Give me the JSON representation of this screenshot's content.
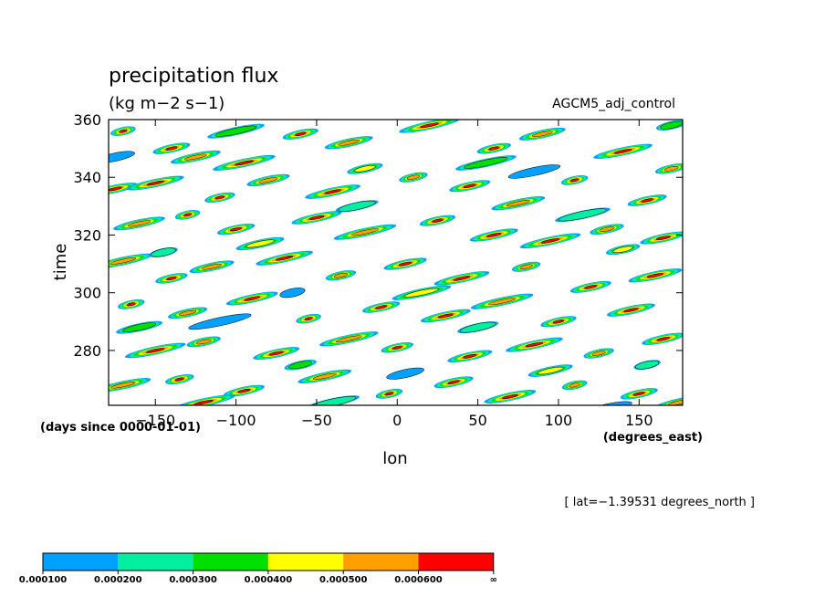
{
  "chart_data": {
    "type": "heatmap",
    "title": "precipitation flux",
    "units": "(kg m−2 s−1)",
    "dataset": "AGCM5_adj_control",
    "xlabel": "lon",
    "ylabel": "time",
    "x_units": "(degrees_east)",
    "y_units": "(days since 0000-01-01)",
    "annotation": "[ lat=−1.39531 degrees_north ]",
    "xlim": [
      -179,
      177
    ],
    "ylim": [
      261,
      360
    ],
    "x_ticks": [
      -150,
      -100,
      -50,
      0,
      50,
      100,
      150
    ],
    "x_tick_labels": [
      "−150",
      "−100",
      "−50",
      "0",
      "50",
      "100",
      "150"
    ],
    "y_ticks": [
      280,
      300,
      320,
      340,
      360
    ],
    "y_tick_labels": [
      "280",
      "300",
      "320",
      "340",
      "360"
    ],
    "grid": false,
    "legend_position": "bottom-left",
    "colorbar": {
      "levels": [
        "0.000100",
        "0.000200",
        "0.000300",
        "0.000400",
        "0.000500",
        "0.000600",
        "∞"
      ],
      "colors": [
        "#00a0ff",
        "#00f0a0",
        "#00e000",
        "#ffff00",
        "#ffa000",
        "#ff0000"
      ]
    },
    "field_description": "Hovmoller (time vs longitude) of precipitation flux; scattered short streaks tilted eastward with time",
    "features": [
      {
        "lon": -170,
        "time": 356,
        "value": 0.00065
      },
      {
        "lon": -140,
        "time": 350,
        "value": 0.00062
      },
      {
        "lon": -125,
        "time": 347,
        "value": 0.00058
      },
      {
        "lon": -95,
        "time": 345,
        "value": 0.00065
      },
      {
        "lon": -60,
        "time": 355,
        "value": 0.00066
      },
      {
        "lon": -30,
        "time": 352,
        "value": 0.00055
      },
      {
        "lon": 20,
        "time": 358,
        "value": 0.00064
      },
      {
        "lon": 60,
        "time": 350,
        "value": 0.00062
      },
      {
        "lon": 90,
        "time": 355,
        "value": 0.00058
      },
      {
        "lon": 140,
        "time": 349,
        "value": 0.00066
      },
      {
        "lon": 170,
        "time": 343,
        "value": 0.00055
      },
      {
        "lon": -175,
        "time": 336,
        "value": 0.00065
      },
      {
        "lon": -150,
        "time": 338,
        "value": 0.00062
      },
      {
        "lon": -110,
        "time": 333,
        "value": 0.00064
      },
      {
        "lon": -80,
        "time": 339,
        "value": 0.00052
      },
      {
        "lon": -40,
        "time": 335,
        "value": 0.00065
      },
      {
        "lon": 10,
        "time": 340,
        "value": 0.00058
      },
      {
        "lon": 45,
        "time": 337,
        "value": 0.00065
      },
      {
        "lon": 75,
        "time": 331,
        "value": 0.00055
      },
      {
        "lon": 110,
        "time": 339,
        "value": 0.00064
      },
      {
        "lon": 155,
        "time": 332,
        "value": 0.00062
      },
      {
        "lon": -160,
        "time": 324,
        "value": 0.00058
      },
      {
        "lon": -130,
        "time": 327,
        "value": 0.00066
      },
      {
        "lon": -100,
        "time": 322,
        "value": 0.00061
      },
      {
        "lon": -50,
        "time": 326,
        "value": 0.00065
      },
      {
        "lon": -20,
        "time": 321,
        "value": 0.00055
      },
      {
        "lon": 25,
        "time": 325,
        "value": 0.00064
      },
      {
        "lon": 60,
        "time": 320,
        "value": 0.00066
      },
      {
        "lon": 95,
        "time": 318,
        "value": 0.00065
      },
      {
        "lon": 130,
        "time": 322,
        "value": 0.00058
      },
      {
        "lon": 165,
        "time": 319,
        "value": 0.00062
      },
      {
        "lon": -170,
        "time": 311,
        "value": 0.00055
      },
      {
        "lon": -140,
        "time": 305,
        "value": 0.00066
      },
      {
        "lon": -115,
        "time": 309,
        "value": 0.00058
      },
      {
        "lon": -70,
        "time": 312,
        "value": 0.00064
      },
      {
        "lon": -35,
        "time": 306,
        "value": 0.00055
      },
      {
        "lon": 5,
        "time": 310,
        "value": 0.00062
      },
      {
        "lon": 40,
        "time": 305,
        "value": 0.00066
      },
      {
        "lon": 80,
        "time": 309,
        "value": 0.00055
      },
      {
        "lon": 120,
        "time": 302,
        "value": 0.00064
      },
      {
        "lon": 160,
        "time": 306,
        "value": 0.00062
      },
      {
        "lon": -165,
        "time": 296,
        "value": 0.00064
      },
      {
        "lon": -130,
        "time": 293,
        "value": 0.00055
      },
      {
        "lon": -90,
        "time": 298,
        "value": 0.00066
      },
      {
        "lon": -55,
        "time": 291,
        "value": 0.00061
      },
      {
        "lon": -10,
        "time": 295,
        "value": 0.00065
      },
      {
        "lon": 30,
        "time": 292,
        "value": 0.00066
      },
      {
        "lon": 65,
        "time": 297,
        "value": 0.00058
      },
      {
        "lon": 100,
        "time": 290,
        "value": 0.00065
      },
      {
        "lon": 145,
        "time": 294,
        "value": 0.00062
      },
      {
        "lon": -150,
        "time": 280,
        "value": 0.00066
      },
      {
        "lon": -120,
        "time": 283,
        "value": 0.00058
      },
      {
        "lon": -75,
        "time": 279,
        "value": 0.00064
      },
      {
        "lon": -30,
        "time": 284,
        "value": 0.00055
      },
      {
        "lon": 0,
        "time": 281,
        "value": 0.00066
      },
      {
        "lon": 45,
        "time": 278,
        "value": 0.00062
      },
      {
        "lon": 85,
        "time": 282,
        "value": 0.00065
      },
      {
        "lon": 125,
        "time": 279,
        "value": 0.00058
      },
      {
        "lon": 165,
        "time": 284,
        "value": 0.00064
      },
      {
        "lon": -170,
        "time": 268,
        "value": 0.00055
      },
      {
        "lon": -135,
        "time": 270,
        "value": 0.00066
      },
      {
        "lon": -95,
        "time": 266,
        "value": 0.00061
      },
      {
        "lon": -45,
        "time": 271,
        "value": 0.00058
      },
      {
        "lon": -5,
        "time": 265,
        "value": 0.00065
      },
      {
        "lon": 35,
        "time": 269,
        "value": 0.00062
      },
      {
        "lon": 70,
        "time": 264,
        "value": 0.00066
      },
      {
        "lon": 110,
        "time": 268,
        "value": 0.00055
      },
      {
        "lon": 150,
        "time": 265,
        "value": 0.00064
      },
      {
        "lon": 175,
        "time": 262,
        "value": 0.00058
      },
      {
        "lon": -120,
        "time": 262,
        "value": 0.00062
      },
      {
        "lon": -20,
        "time": 343,
        "value": 0.00045
      },
      {
        "lon": -85,
        "time": 317,
        "value": 0.00042
      },
      {
        "lon": 55,
        "time": 345,
        "value": 0.00038
      },
      {
        "lon": 140,
        "time": 315,
        "value": 0.00044
      },
      {
        "lon": -160,
        "time": 288,
        "value": 0.00036
      },
      {
        "lon": 15,
        "time": 300,
        "value": 0.00041
      },
      {
        "lon": -60,
        "time": 275,
        "value": 0.00039
      },
      {
        "lon": 95,
        "time": 273,
        "value": 0.00043
      },
      {
        "lon": -100,
        "time": 356,
        "value": 0.00035
      },
      {
        "lon": 170,
        "time": 358,
        "value": 0.00037
      },
      {
        "lon": -25,
        "time": 330,
        "value": 0.00025
      },
      {
        "lon": 115,
        "time": 327,
        "value": 0.00028
      },
      {
        "lon": -145,
        "time": 314,
        "value": 0.00022
      },
      {
        "lon": 50,
        "time": 288,
        "value": 0.00027
      },
      {
        "lon": -40,
        "time": 262,
        "value": 0.00024
      },
      {
        "lon": 155,
        "time": 275,
        "value": 0.00021
      },
      {
        "lon": -175,
        "time": 347,
        "value": 0.00018
      },
      {
        "lon": 85,
        "time": 342,
        "value": 0.00016
      },
      {
        "lon": -65,
        "time": 300,
        "value": 0.00015
      },
      {
        "lon": 5,
        "time": 272,
        "value": 0.00017
      },
      {
        "lon": 130,
        "time": 260,
        "value": 0.00014
      },
      {
        "lon": -110,
        "time": 290,
        "value": 0.00019
      }
    ]
  }
}
